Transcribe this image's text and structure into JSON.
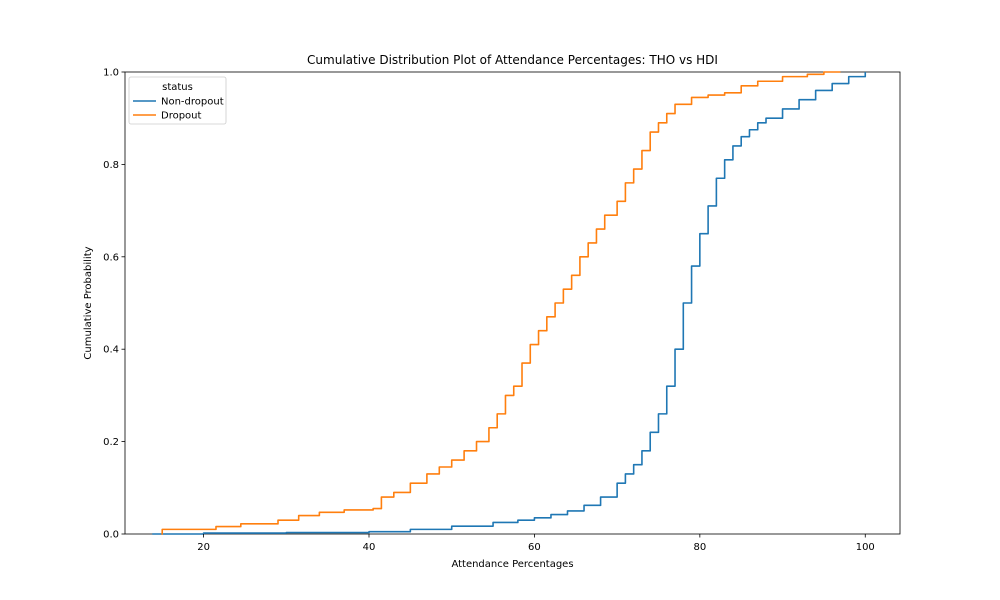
{
  "chart_data": {
    "type": "line",
    "title": "Cumulative Distribution Plot of Attendance Percentages: THO vs HDI",
    "xlabel": "Attendance Percentages",
    "ylabel": "Cumulative Probability",
    "xlim": [
      10.5,
      104.2
    ],
    "ylim": [
      0.0,
      1.0
    ],
    "x_ticks": [
      20,
      40,
      60,
      80,
      100
    ],
    "y_ticks": [
      0.0,
      0.2,
      0.4,
      0.6,
      0.8,
      1.0
    ],
    "x_tick_labels": [
      "20",
      "40",
      "60",
      "80",
      "100"
    ],
    "y_tick_labels": [
      "0.0",
      "0.2",
      "0.4",
      "0.6",
      "0.8",
      "1.0"
    ],
    "grid": false,
    "legend": {
      "title": "status",
      "placement": "top-left",
      "entries": [
        "Non-dropout",
        "Dropout"
      ]
    },
    "series": [
      {
        "name": "Non-dropout",
        "color": "#1f77b4",
        "points": [
          [
            13.8,
            0.0
          ],
          [
            20,
            0.002
          ],
          [
            30,
            0.003
          ],
          [
            40,
            0.005
          ],
          [
            45,
            0.01
          ],
          [
            50,
            0.017
          ],
          [
            55,
            0.025
          ],
          [
            58,
            0.03
          ],
          [
            60,
            0.035
          ],
          [
            62,
            0.042
          ],
          [
            64,
            0.05
          ],
          [
            66,
            0.062
          ],
          [
            68,
            0.08
          ],
          [
            70,
            0.11
          ],
          [
            71,
            0.13
          ],
          [
            72,
            0.15
          ],
          [
            73,
            0.18
          ],
          [
            74,
            0.22
          ],
          [
            75,
            0.26
          ],
          [
            76,
            0.32
          ],
          [
            77,
            0.4
          ],
          [
            78,
            0.5
          ],
          [
            79,
            0.58
          ],
          [
            80,
            0.65
          ],
          [
            81,
            0.71
          ],
          [
            82,
            0.77
          ],
          [
            83,
            0.81
          ],
          [
            84,
            0.84
          ],
          [
            85,
            0.86
          ],
          [
            86,
            0.875
          ],
          [
            87,
            0.89
          ],
          [
            88,
            0.9
          ],
          [
            90,
            0.92
          ],
          [
            92,
            0.94
          ],
          [
            94,
            0.96
          ],
          [
            96,
            0.975
          ],
          [
            98,
            0.99
          ],
          [
            100,
            1.0
          ]
        ]
      },
      {
        "name": "Dropout",
        "color": "#ff7f0e",
        "points": [
          [
            14.9,
            0.0
          ],
          [
            15,
            0.01
          ],
          [
            21.5,
            0.016
          ],
          [
            24.5,
            0.022
          ],
          [
            29,
            0.03
          ],
          [
            31.5,
            0.04
          ],
          [
            34,
            0.047
          ],
          [
            37,
            0.052
          ],
          [
            40.5,
            0.055
          ],
          [
            41.5,
            0.08
          ],
          [
            43,
            0.09
          ],
          [
            45,
            0.11
          ],
          [
            47,
            0.13
          ],
          [
            48.5,
            0.145
          ],
          [
            50,
            0.16
          ],
          [
            51.5,
            0.18
          ],
          [
            53,
            0.2
          ],
          [
            54.5,
            0.23
          ],
          [
            55.5,
            0.26
          ],
          [
            56.5,
            0.3
          ],
          [
            57.5,
            0.32
          ],
          [
            58.5,
            0.37
          ],
          [
            59.5,
            0.41
          ],
          [
            60.5,
            0.44
          ],
          [
            61.5,
            0.47
          ],
          [
            62.5,
            0.5
          ],
          [
            63.5,
            0.53
          ],
          [
            64.5,
            0.56
          ],
          [
            65.5,
            0.6
          ],
          [
            66.5,
            0.63
          ],
          [
            67.5,
            0.66
          ],
          [
            68.5,
            0.69
          ],
          [
            70,
            0.72
          ],
          [
            71,
            0.76
          ],
          [
            72,
            0.79
          ],
          [
            73,
            0.83
          ],
          [
            74,
            0.87
          ],
          [
            75,
            0.89
          ],
          [
            76,
            0.91
          ],
          [
            77,
            0.93
          ],
          [
            79,
            0.945
          ],
          [
            81,
            0.95
          ],
          [
            83,
            0.955
          ],
          [
            85,
            0.97
          ],
          [
            87,
            0.98
          ],
          [
            90,
            0.99
          ],
          [
            93,
            0.995
          ],
          [
            95,
            1.0
          ],
          [
            97,
            1.0
          ]
        ]
      }
    ]
  }
}
